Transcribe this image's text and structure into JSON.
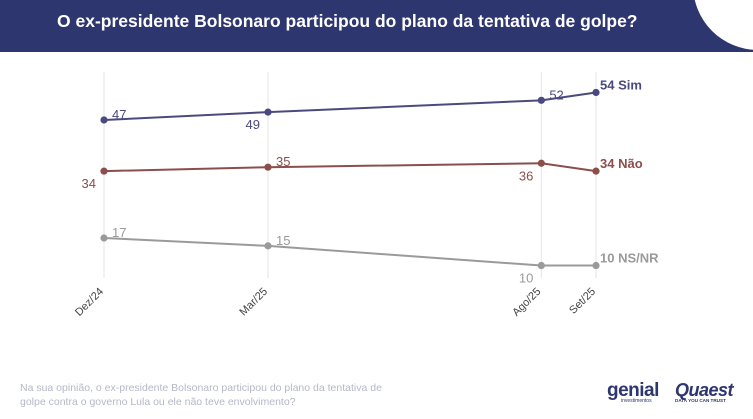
{
  "header": {
    "title": "O ex-presidente Bolsonaro participou do plano da tentativa de golpe?"
  },
  "chart_data": {
    "type": "line",
    "title": "O ex-presidente Bolsonaro participou do plano da tentativa de golpe?",
    "x": [
      "Dez/24",
      "Mar/25",
      "Ago/25",
      "Set/25"
    ],
    "x_months": [
      0,
      3,
      8,
      9
    ],
    "ylim": [
      0,
      60
    ],
    "grid": "vertical",
    "series": [
      {
        "name": "Sim",
        "values": [
          47,
          49,
          52,
          54
        ],
        "color": "#4a4a80",
        "end_label": "54 Sim",
        "label_pos": [
          "above",
          "below",
          "above",
          "end"
        ]
      },
      {
        "name": "Não",
        "values": [
          34,
          35,
          36,
          34
        ],
        "color": "#8a4f4b",
        "end_label": "34 Não",
        "label_pos": [
          "below",
          "above",
          "below",
          "end"
        ]
      },
      {
        "name": "NS/NR",
        "values": [
          17,
          15,
          10,
          10
        ],
        "color": "#9a9a9a",
        "end_label": "10 NS/NR",
        "label_pos": [
          "above",
          "above",
          "below",
          "end"
        ]
      }
    ]
  },
  "footnote": "Na sua opinião, o ex-presidente Bolsonaro participou do plano da tentativa de golpe contra o governo Lula ou ele não teve envolvimento?",
  "brands": {
    "genial": "genial",
    "genial_sub": "investimentos",
    "quaest": "Quaest",
    "quaest_sub": "DATA YOU CAN TRUST"
  },
  "colors": {
    "header_bg": "#2e3670",
    "grid": "#e6e6e6"
  }
}
